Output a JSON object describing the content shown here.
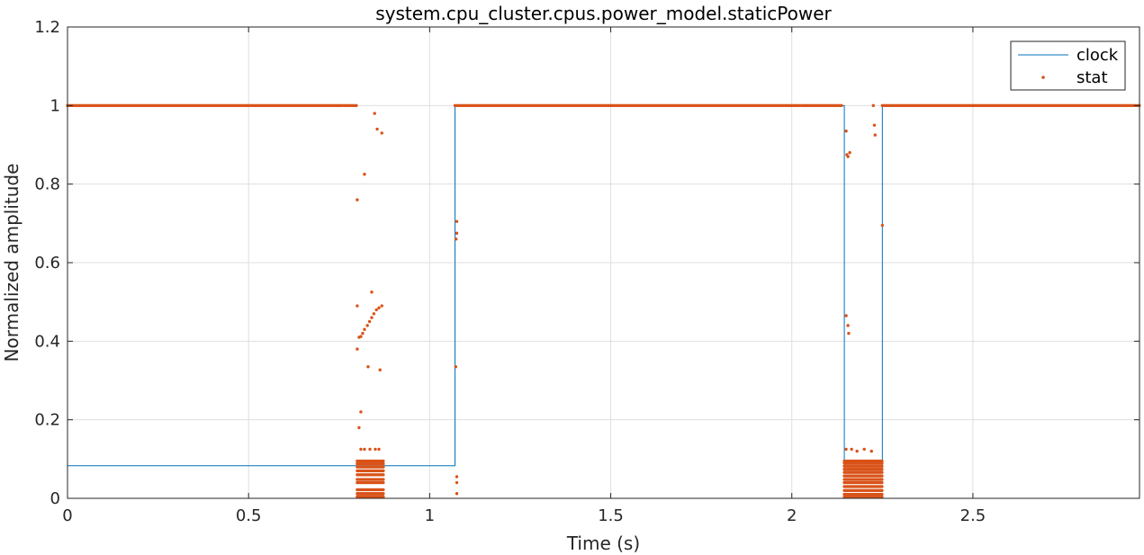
{
  "chart_data": {
    "type": "line",
    "title": "system.cpu_cluster.cpus.power_model.staticPower",
    "xlabel": "Time (s)",
    "ylabel": "Normalized amplitude",
    "xlim": [
      0,
      2.96
    ],
    "ylim": [
      0,
      1.2
    ],
    "xticks": [
      0,
      0.5,
      1,
      1.5,
      2,
      2.5
    ],
    "xtick_labels": [
      "0",
      "0.5",
      "1",
      "1.5",
      "2",
      "2.5"
    ],
    "yticks": [
      0,
      0.2,
      0.4,
      0.6,
      0.8,
      1,
      1.2
    ],
    "ytick_labels": [
      "0",
      "0.2",
      "0.4",
      "0.6",
      "0.8",
      "1",
      "1.2"
    ],
    "grid": true,
    "legend_position": "top-right",
    "colors": {
      "clock": "#0072bd",
      "stat": "#d95319",
      "grid": "#dfdfdf",
      "axis": "#262626"
    },
    "series": [
      {
        "name": "clock",
        "style": "line",
        "points": [
          [
            0,
            0.083
          ],
          [
            1.07,
            0.083
          ],
          [
            1.07,
            1.0
          ],
          [
            2.145,
            1.0
          ],
          [
            2.145,
            0.083
          ],
          [
            2.25,
            0.083
          ],
          [
            2.25,
            1.0
          ],
          [
            2.96,
            1.0
          ],
          [
            2.96,
            0.083
          ]
        ]
      },
      {
        "name": "stat",
        "style": "dots",
        "dense_segments": [
          {
            "x0": 0,
            "x1": 0.8,
            "y": 1.0
          },
          {
            "x0": 1.07,
            "x1": 2.14,
            "y": 1.0
          },
          {
            "x0": 2.25,
            "x1": 2.96,
            "y": 1.0
          }
        ],
        "points": [
          [
            0.8,
            0.76
          ],
          [
            0.8,
            0.49
          ],
          [
            0.8,
            0.38
          ],
          [
            0.805,
            0.41
          ],
          [
            0.81,
            0.412
          ],
          [
            0.815,
            0.42
          ],
          [
            0.82,
            0.43
          ],
          [
            0.828,
            0.44
          ],
          [
            0.834,
            0.45
          ],
          [
            0.84,
            0.46
          ],
          [
            0.846,
            0.47
          ],
          [
            0.853,
            0.48
          ],
          [
            0.86,
            0.485
          ],
          [
            0.868,
            0.49
          ],
          [
            0.84,
            0.525
          ],
          [
            0.82,
            0.825
          ],
          [
            0.848,
            0.98
          ],
          [
            0.855,
            0.94
          ],
          [
            0.868,
            0.93
          ],
          [
            0.83,
            0.335
          ],
          [
            0.863,
            0.327
          ],
          [
            0.81,
            0.22
          ],
          [
            0.805,
            0.18
          ],
          [
            0.81,
            0.125
          ],
          [
            0.82,
            0.125
          ],
          [
            0.835,
            0.125
          ],
          [
            0.85,
            0.125
          ],
          [
            0.86,
            0.125
          ],
          [
            1.075,
            0.705
          ],
          [
            1.075,
            0.675
          ],
          [
            1.073,
            0.66
          ],
          [
            1.072,
            0.335
          ],
          [
            1.075,
            0.055
          ],
          [
            1.075,
            0.04
          ],
          [
            1.075,
            0.012
          ],
          [
            2.15,
            0.935
          ],
          [
            2.152,
            0.875
          ],
          [
            2.155,
            0.87
          ],
          [
            2.16,
            0.88
          ],
          [
            2.15,
            0.465
          ],
          [
            2.155,
            0.44
          ],
          [
            2.157,
            0.42
          ],
          [
            2.225,
            1.0
          ],
          [
            2.228,
            0.95
          ],
          [
            2.23,
            0.925
          ],
          [
            2.25,
            0.695
          ],
          [
            2.15,
            0.125
          ],
          [
            2.165,
            0.125
          ],
          [
            2.18,
            0.12
          ],
          [
            2.2,
            0.125
          ],
          [
            2.22,
            0.12
          ]
        ],
        "bands": [
          {
            "x0": 0.8,
            "x1": 0.875,
            "ys": [
              0.095,
              0.088,
              0.08,
              0.07,
              0.06,
              0.048,
              0.04,
              0.022,
              0.012,
              0.004
            ]
          },
          {
            "x0": 2.145,
            "x1": 2.25,
            "ys": [
              0.095,
              0.09,
              0.082,
              0.074,
              0.066,
              0.057,
              0.048,
              0.04,
              0.03,
              0.02,
              0.01,
              0.003
            ]
          }
        ]
      }
    ]
  }
}
